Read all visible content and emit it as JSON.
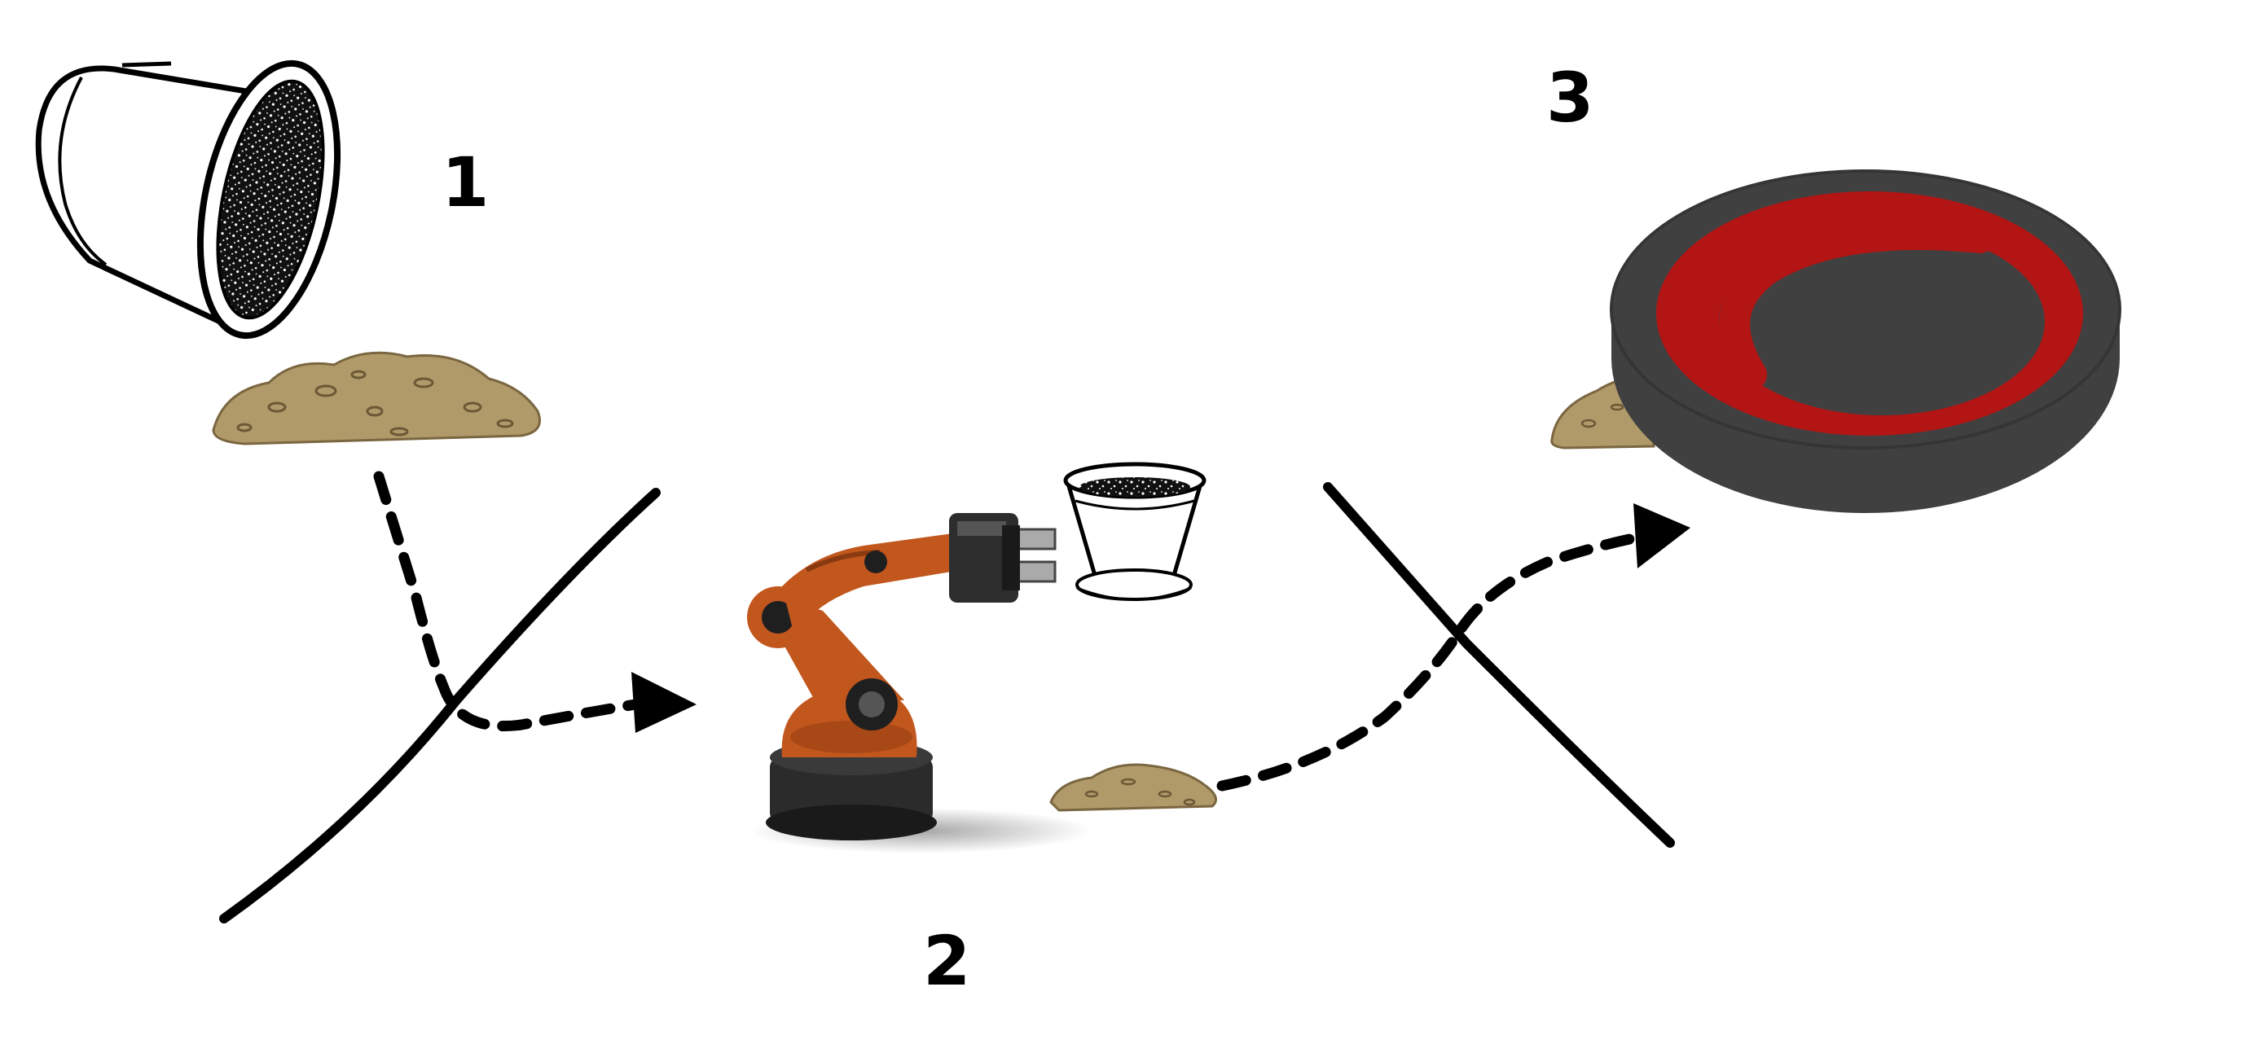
{
  "steps": [
    {
      "label": "1",
      "description": "pot-tipped-over-spilling-soil"
    },
    {
      "label": "2",
      "description": "robot-arm-holding-pot"
    },
    {
      "label": "3",
      "description": "hot-plate-covering-soil"
    }
  ],
  "colors": {
    "line": "#000000",
    "soil": "#b09a6a",
    "soil_dark": "#7a6640",
    "robot_orange": "#c2571e",
    "robot_dark": "#2b2b2b",
    "plate_body": "#404040",
    "plate_coil": "#b21514",
    "background": "#ffffff"
  },
  "icons": [
    "flower-pot-icon",
    "soil-pile-icon",
    "robot-arm-icon",
    "hot-plate-icon",
    "arrow-head-icon"
  ]
}
